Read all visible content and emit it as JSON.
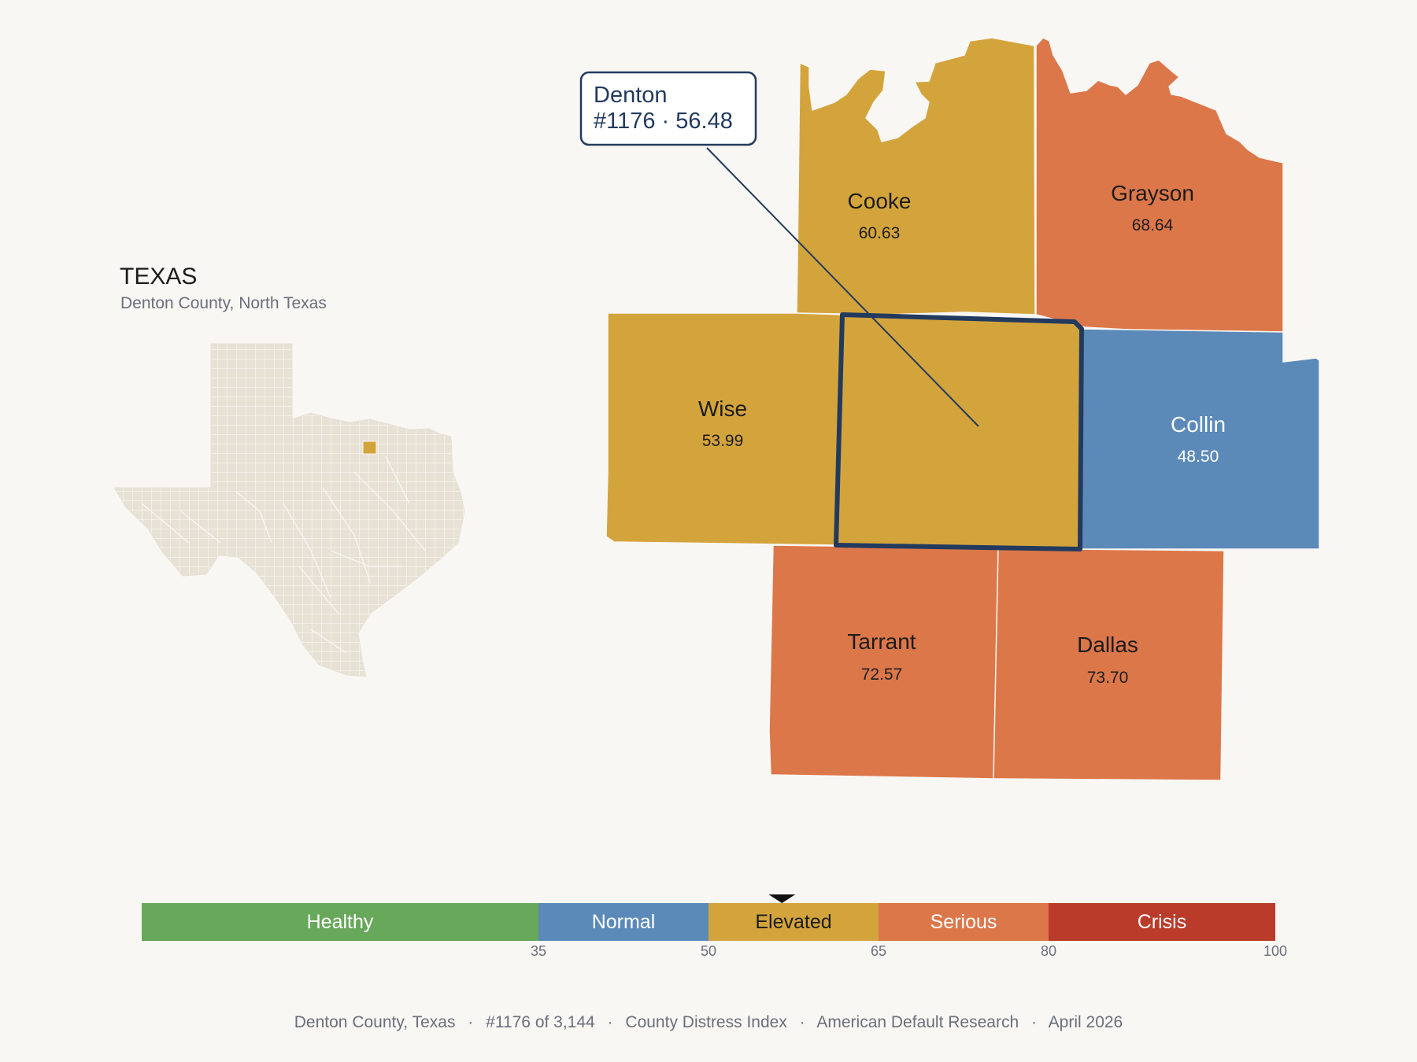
{
  "inset": {
    "title": "TEXAS",
    "subtitle": "Denton County, North Texas",
    "highlight_color": "#d4a43c",
    "fill_color": "#e8e2d6"
  },
  "counties": [
    {
      "key": "cooke",
      "name": "Cooke",
      "value": "60.63",
      "category": "Elevated"
    },
    {
      "key": "grayson",
      "name": "Grayson",
      "value": "68.64",
      "category": "Serious"
    },
    {
      "key": "wise",
      "name": "Wise",
      "value": "53.99",
      "category": "Elevated"
    },
    {
      "key": "denton",
      "name": "Denton",
      "value": "56.48",
      "category": "Elevated",
      "selected": true
    },
    {
      "key": "collin",
      "name": "Collin",
      "value": "48.50",
      "category": "Normal"
    },
    {
      "key": "tarrant",
      "name": "Tarrant",
      "value": "72.57",
      "category": "Serious"
    },
    {
      "key": "dallas",
      "name": "Dallas",
      "value": "73.70",
      "category": "Serious"
    }
  ],
  "callout": {
    "name": "Denton",
    "detail": "#1176 · 56.48"
  },
  "legend": {
    "bands": [
      {
        "label": "Healthy",
        "from": 0,
        "to": 35,
        "color": "#67a85a"
      },
      {
        "label": "Normal",
        "from": 35,
        "to": 50,
        "color": "#5b8ab9"
      },
      {
        "label": "Elevated",
        "from": 50,
        "to": 65,
        "color": "#d4a43c"
      },
      {
        "label": "Serious",
        "from": 65,
        "to": 80,
        "color": "#dc774a"
      },
      {
        "label": "Crisis",
        "from": 80,
        "to": 100,
        "color": "#ba3b2a"
      }
    ],
    "ticks": [
      "35",
      "50",
      "65",
      "80",
      "100"
    ],
    "marker_value": 56.48
  },
  "footer": {
    "place": "Denton County, Texas",
    "rank": "#1176 of 3,144",
    "index": "County Distress Index",
    "source": "American Default Research",
    "date": "April 2026",
    "separator": "·"
  },
  "colors": {
    "background": "#f9f7f3",
    "outline": "#223a5e",
    "label_dark": "#1c1c1c",
    "label_light": "#ffffff"
  }
}
